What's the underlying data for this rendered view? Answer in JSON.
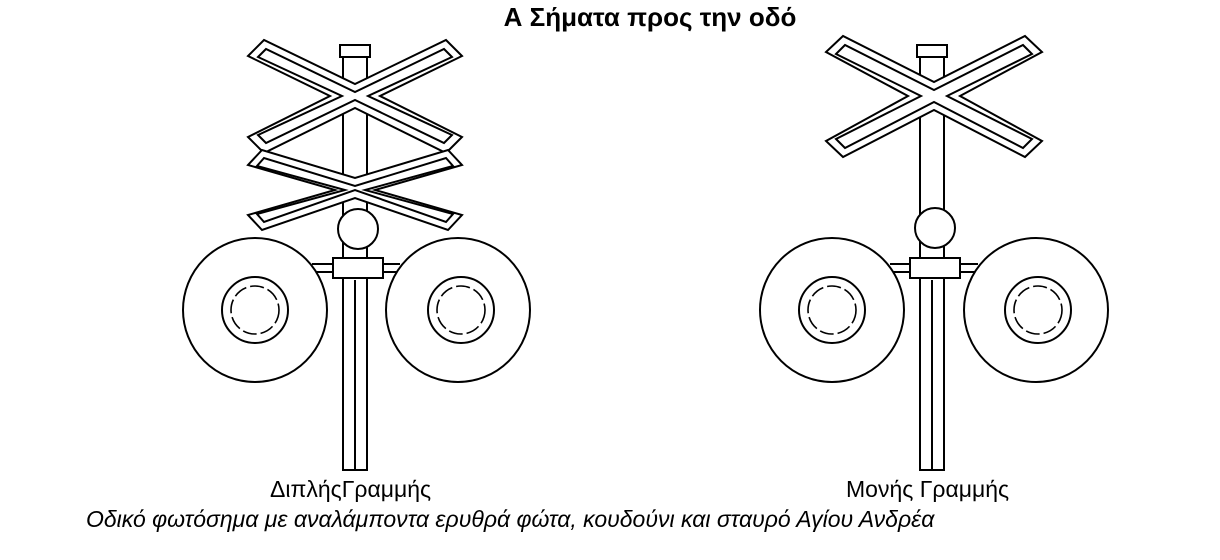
{
  "title": "Α Σήματα προς την οδό",
  "signals": [
    {
      "label": "ΔιπλήςΓραμμής"
    },
    {
      "label": "Μονής Γραμμής"
    }
  ],
  "caption": "Οδικό φωτόσημα με αναλάμποντα ερυθρά φώτα, κουδούνι και σταυρό Αγίου Ανδρέα"
}
